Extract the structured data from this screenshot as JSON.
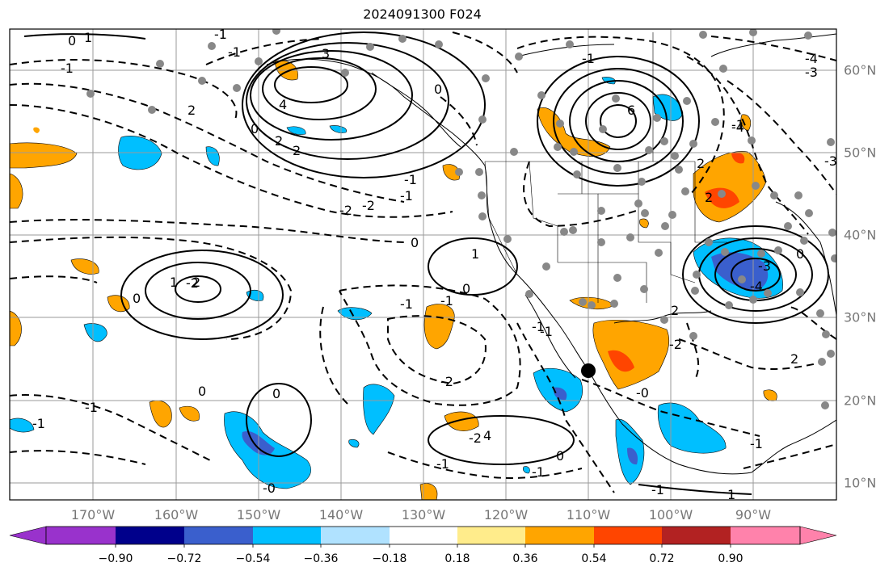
{
  "title": "2024091300 F024",
  "longitude_labels": [
    "170°W",
    "160°W",
    "150°W",
    "140°W",
    "130°W",
    "120°W",
    "110°W",
    "100°W",
    "90°W"
  ],
  "latitude_labels": [
    "60°N",
    "50°N",
    "40°N",
    "30°N",
    "20°N",
    "10°N"
  ],
  "colorbar": {
    "ticks": [
      "−0.90",
      "−0.72",
      "−0.54",
      "−0.36",
      "−0.18",
      "0.18",
      "0.36",
      "0.54",
      "0.72",
      "0.90"
    ],
    "colors": [
      "#9932CC",
      "#00008B",
      "#3A5FCD",
      "#00BFFF",
      "#B0E2FF",
      "#FFFFFF",
      "#FFEC8B",
      "#FFA500",
      "#FF4500",
      "#B22222",
      "#FF82AB"
    ]
  },
  "contour_labels": [
    "0",
    "1",
    "-1",
    "3",
    "-1",
    "2",
    "4",
    "2",
    "2",
    "0",
    "-1",
    "0",
    "-1",
    "6",
    "-4",
    "-3",
    "-3",
    "-4",
    "-1",
    "-2",
    "-2",
    "-1",
    "0",
    "1",
    "0",
    "-1",
    "-1",
    "0",
    "-2",
    "-2",
    "0",
    "-1",
    "1",
    "2",
    "-2",
    "-1",
    "-1",
    "-1",
    "0",
    "-1",
    "1",
    "-1",
    "0",
    "-1",
    "-0",
    "-0",
    "0",
    "-2",
    "2",
    "-1",
    "2",
    "-3",
    "-4",
    "2",
    "2",
    "4",
    "-1"
  ],
  "station_marker": "●"
}
